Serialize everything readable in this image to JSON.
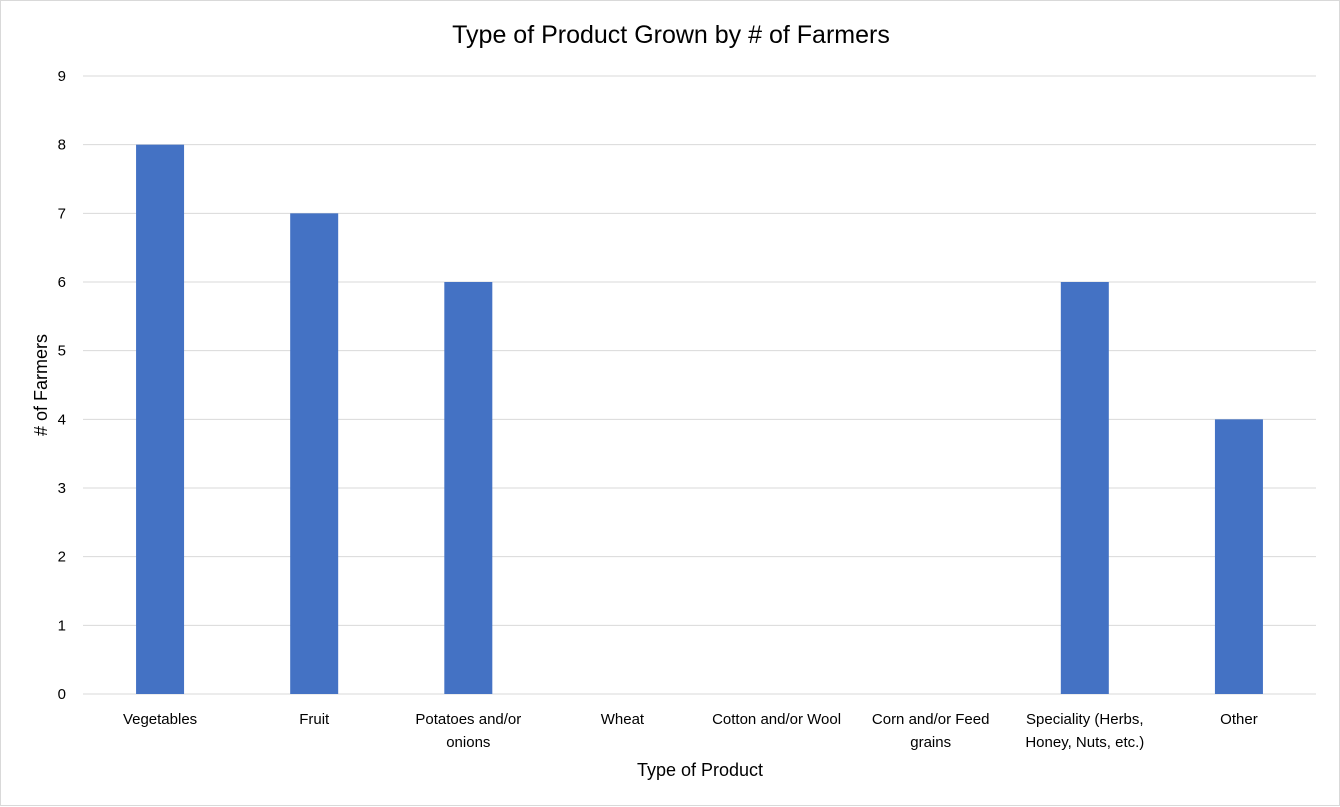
{
  "chart_data": {
    "type": "bar",
    "title": "Type of Product Grown by # of Farmers",
    "xlabel": "Type of Product",
    "ylabel": "# of Farmers",
    "ylim": [
      0,
      9
    ],
    "yticks": [
      "0",
      "1",
      "2",
      "3",
      "4",
      "5",
      "6",
      "7",
      "8",
      "9"
    ],
    "grid": true,
    "categories": [
      [
        "Vegetables"
      ],
      [
        "Fruit"
      ],
      [
        "Potatoes and/or",
        "onions"
      ],
      [
        "Wheat"
      ],
      [
        "Cotton and/or Wool"
      ],
      [
        "Corn and/or Feed",
        "grains"
      ],
      [
        "Speciality (Herbs,",
        "Honey, Nuts, etc.)"
      ],
      [
        "Other"
      ]
    ],
    "values": [
      8,
      7,
      6,
      0,
      0,
      0,
      6,
      4
    ],
    "colors": {
      "bar": "#4472C4",
      "grid": "#d9d9d9"
    }
  }
}
